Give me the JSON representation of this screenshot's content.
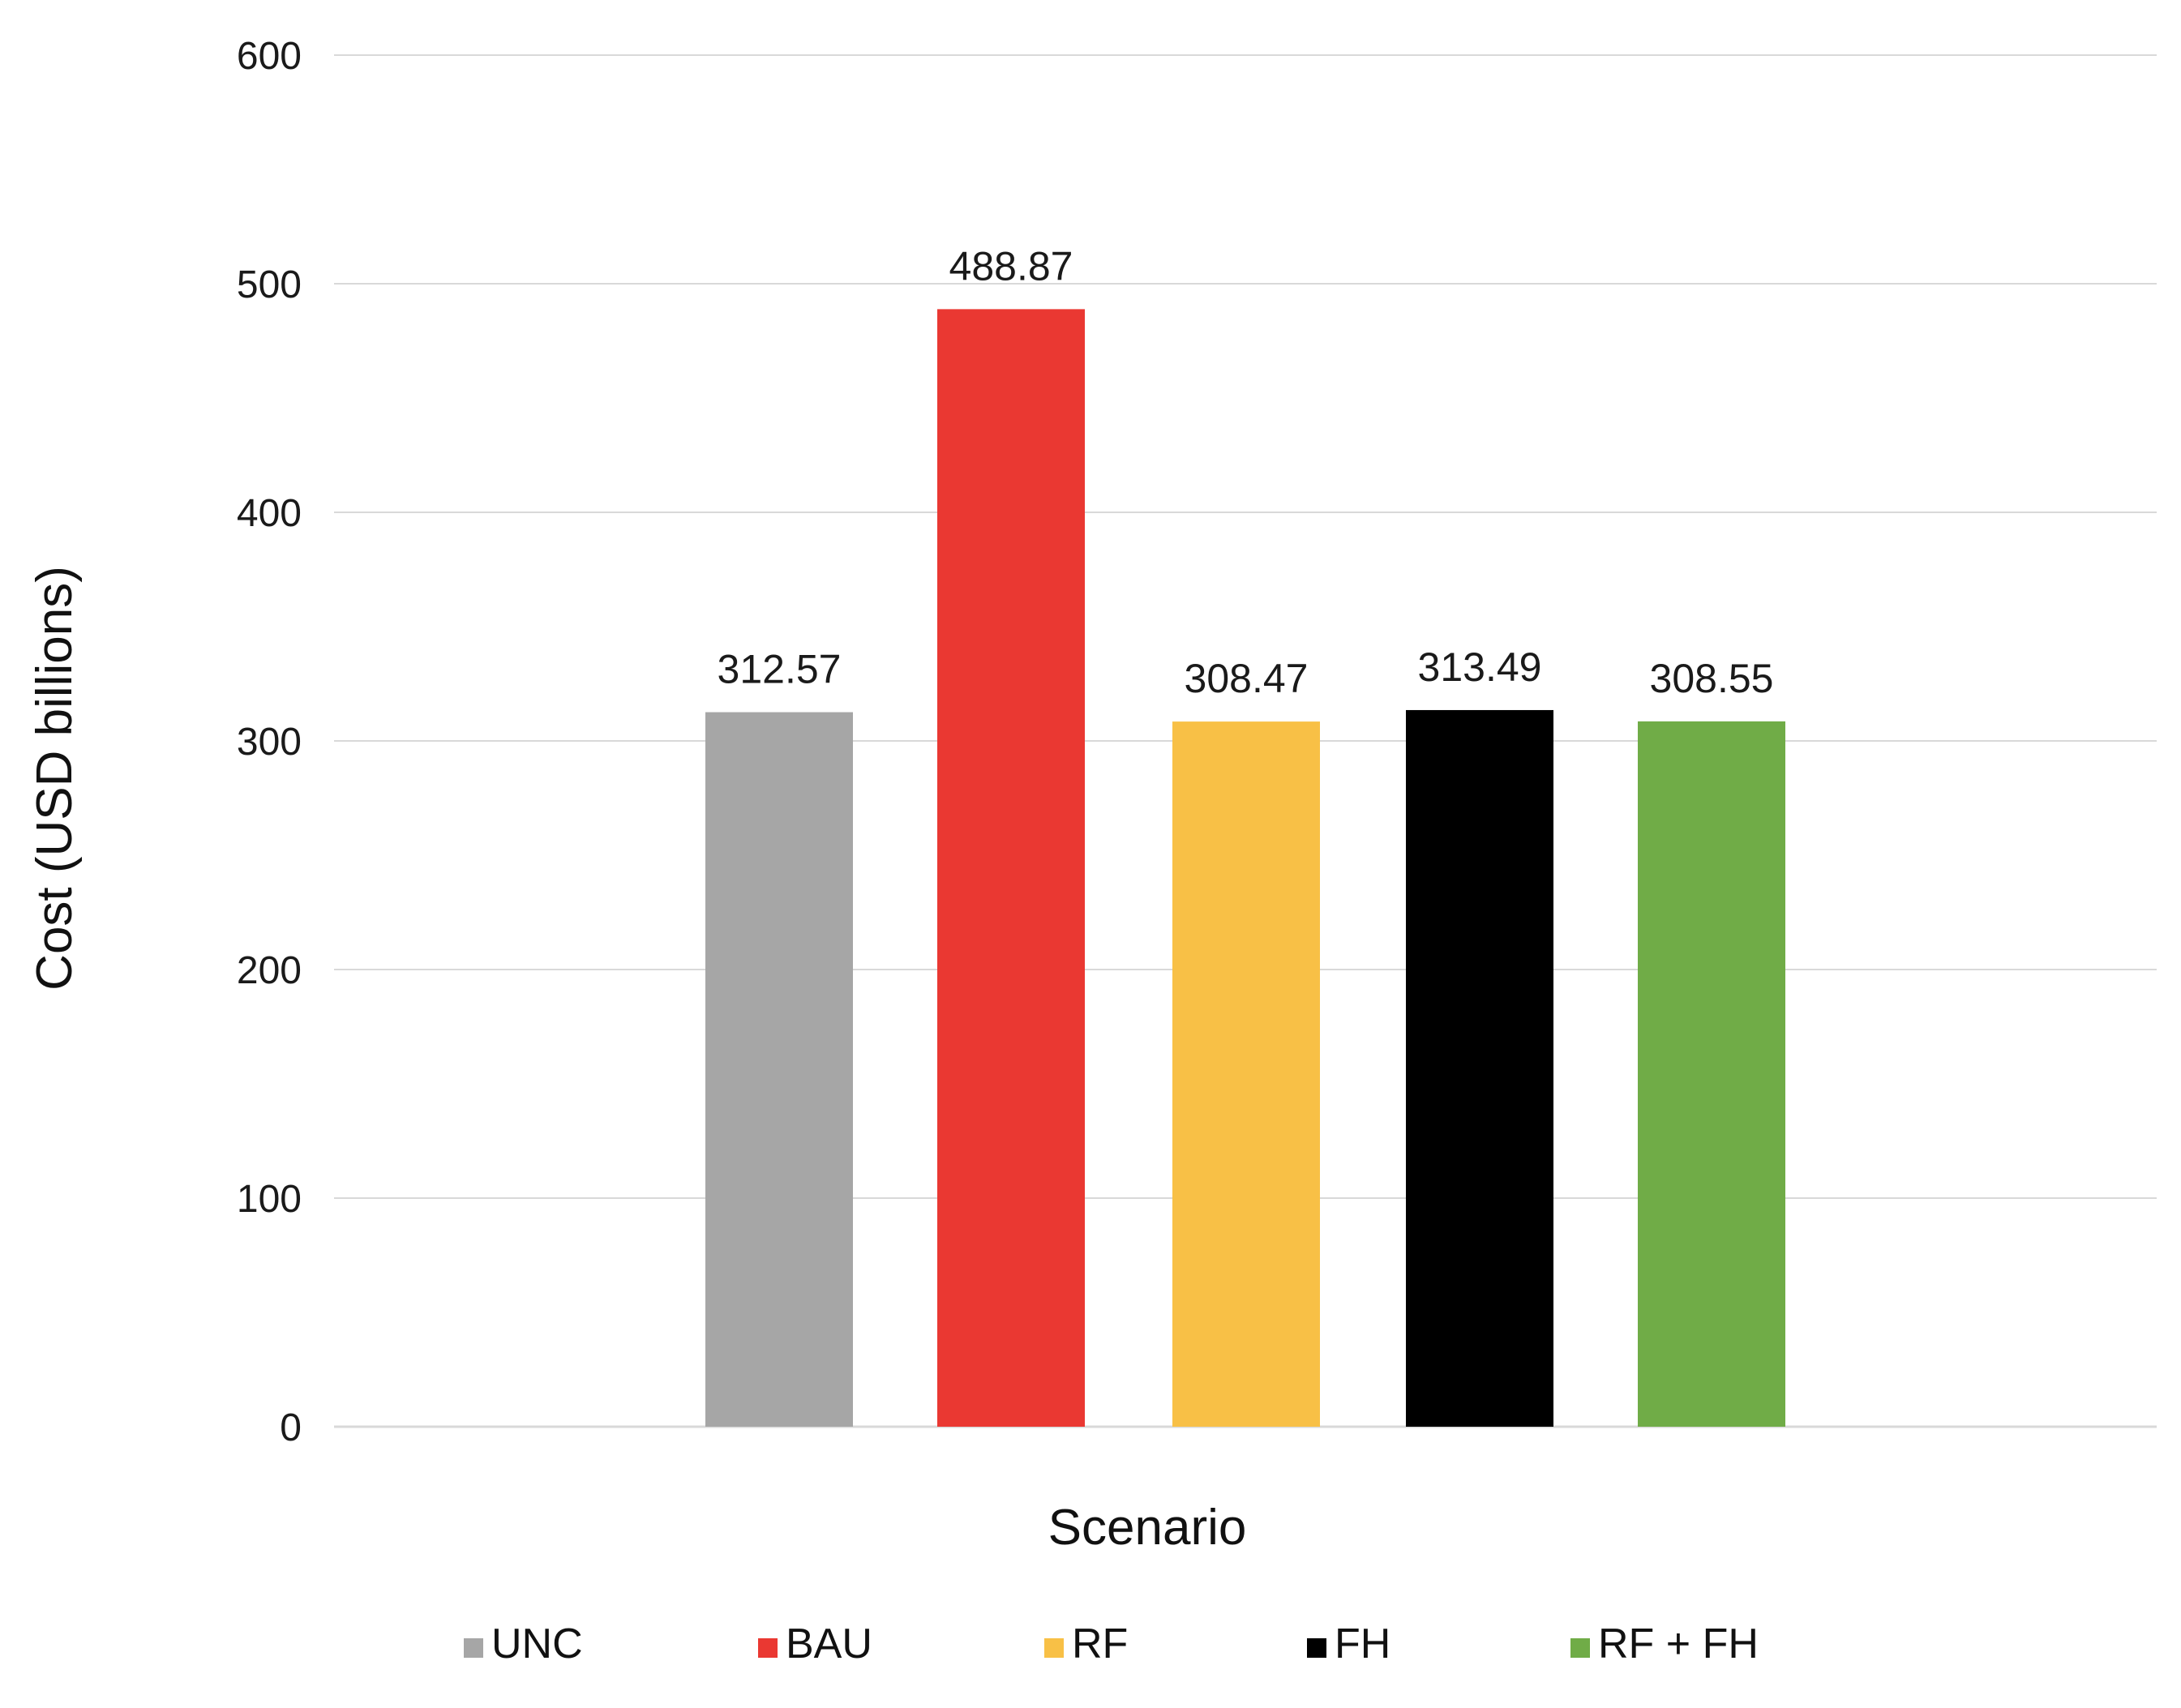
{
  "chart_data": {
    "type": "bar",
    "categories": [
      "UNC",
      "BAU",
      "RF",
      "FH",
      "RF + FH"
    ],
    "values": [
      312.57,
      488.87,
      308.47,
      313.49,
      308.55
    ],
    "data_labels": [
      "312.57",
      "488.87",
      "308.47",
      "313.49",
      "308.55"
    ],
    "colors": [
      "#a6a6a6",
      "#ea3832",
      "#f8c046",
      "#000000",
      "#70ac47"
    ],
    "xlabel": "Scenario",
    "ylabel": "Cost (USD billions)",
    "ylim": [
      0,
      600
    ],
    "yticks": [
      "0",
      "100",
      "200",
      "300",
      "400",
      "500",
      "600"
    ],
    "grid": true,
    "gridline_color": "#d9d9d9",
    "legend": {
      "placement": "bottom",
      "entries": [
        "UNC",
        "BAU",
        "RF",
        "FH",
        "RF + FH"
      ]
    }
  }
}
